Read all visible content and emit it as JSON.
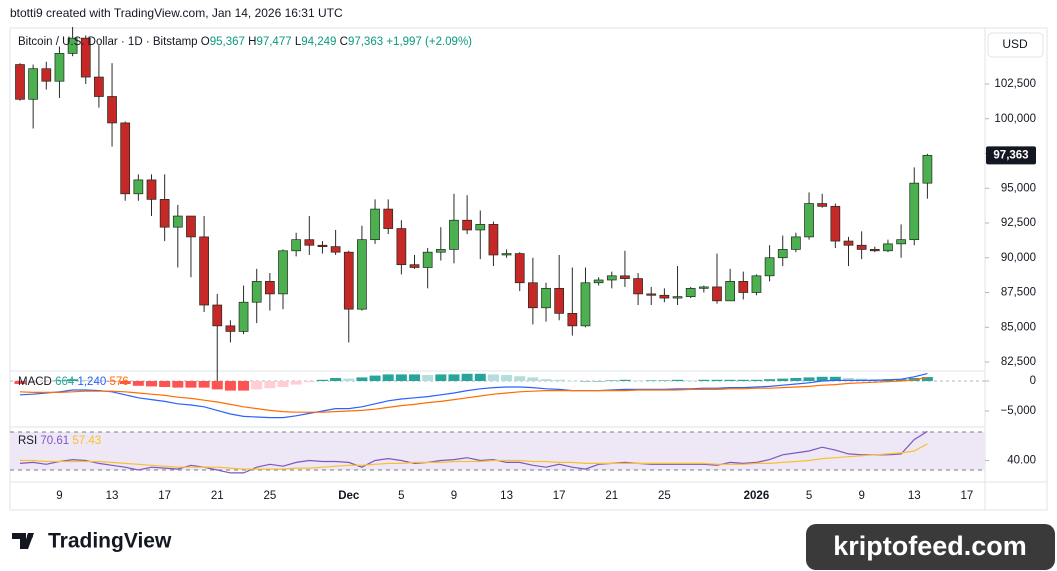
{
  "header": {
    "attribution": "btotti9 created with TradingView.com, Jan 14, 2026 16:31 UTC"
  },
  "footer": {
    "logo": "TradingView",
    "watermark": "kriptofeed.com"
  },
  "chart_data": [
    {
      "type": "candlestick",
      "title": "Bitcoin / U.S. Dollar · 1D · Bitstamp",
      "ohlc_legend": [
        {
          "key": "O",
          "value": "95,367"
        },
        {
          "key": "H",
          "value": "97,477"
        },
        {
          "key": "L",
          "value": "94,249"
        },
        {
          "key": "C",
          "value": "97,363"
        }
      ],
      "change": "+1,997 (+2.09%)",
      "currency": "USD",
      "last_price_label": "97,363",
      "up_color": "#4caf50",
      "down_color": "#c62828",
      "wick_color": "#2a2a2a",
      "x": [
        0,
        1,
        2,
        3,
        4,
        5,
        6,
        7,
        8,
        9,
        10,
        11,
        12,
        13,
        14,
        15,
        16,
        17,
        18,
        19,
        20,
        21,
        22,
        23,
        24,
        25,
        26,
        27,
        28,
        29,
        30,
        31,
        32,
        33,
        34,
        35,
        36,
        37,
        38,
        39,
        40,
        41,
        42,
        43,
        44,
        45,
        46,
        47,
        48,
        49,
        50,
        51,
        52,
        53,
        54,
        55,
        56,
        57,
        58,
        59,
        60,
        61,
        62,
        63,
        64,
        65,
        66,
        67,
        68,
        69
      ],
      "open": [
        103900,
        101400,
        103600,
        102700,
        104700,
        105800,
        103000,
        101600,
        99700,
        94600,
        95600,
        94200,
        92200,
        93000,
        91500,
        86600,
        85100,
        84700,
        86800,
        88300,
        87400,
        90500,
        91300,
        90900,
        90800,
        90400,
        86300,
        91300,
        93500,
        92100,
        89500,
        89300,
        90400,
        90600,
        92700,
        92000,
        92400,
        90200,
        90300,
        88200,
        86400,
        87800,
        86000,
        85100,
        88200,
        88400,
        88700,
        88500,
        87400,
        87300,
        87100,
        87200,
        87800,
        87900,
        86900,
        88300,
        87500,
        88700,
        90000,
        90600,
        91500,
        93900,
        93700,
        91200,
        90900,
        90600,
        90500,
        91000,
        91300,
        95367
      ],
      "high": [
        104000,
        103900,
        104100,
        105200,
        106600,
        106000,
        105300,
        104000,
        99800,
        96000,
        96000,
        96000,
        93800,
        93000,
        93000,
        87400,
        85500,
        88000,
        89200,
        88900,
        90600,
        91800,
        93000,
        91200,
        92000,
        90500,
        92300,
        94200,
        94200,
        92700,
        90200,
        90700,
        92200,
        94600,
        94500,
        93400,
        92600,
        90600,
        90400,
        90000,
        88200,
        90200,
        89300,
        89300,
        88600,
        89000,
        90500,
        88900,
        87900,
        87800,
        89400,
        87900,
        88000,
        90300,
        89200,
        89000,
        88800,
        90900,
        91600,
        91800,
        94700,
        94600,
        93900,
        91500,
        91900,
        90800,
        91300,
        92400,
        96500,
        97477
      ],
      "low": [
        101300,
        99300,
        102100,
        101500,
        104500,
        102500,
        100800,
        98000,
        94100,
        94100,
        93000,
        91200,
        89300,
        88600,
        86100,
        80600,
        83900,
        84500,
        85300,
        86200,
        86300,
        90100,
        90200,
        90300,
        90200,
        83900,
        86200,
        91000,
        91700,
        88800,
        89200,
        87800,
        89800,
        89600,
        91700,
        89900,
        89400,
        90000,
        87600,
        85200,
        85400,
        85500,
        84400,
        85000,
        88000,
        87800,
        87900,
        86600,
        86600,
        86800,
        86600,
        87100,
        87500,
        86700,
        86900,
        87000,
        87300,
        88300,
        89400,
        90400,
        91300,
        93600,
        90700,
        89400,
        89900,
        90400,
        90400,
        90000,
        90900,
        94249
      ],
      "close": [
        101400,
        103600,
        102700,
        104700,
        105800,
        103000,
        101600,
        99700,
        94600,
        95600,
        94200,
        92200,
        93000,
        91500,
        86600,
        85100,
        84700,
        86800,
        88300,
        87400,
        90500,
        91300,
        90900,
        90800,
        90400,
        86300,
        91300,
        93500,
        92100,
        89500,
        89300,
        90400,
        90600,
        92700,
        92000,
        92400,
        90200,
        90300,
        88200,
        86400,
        87800,
        86000,
        85100,
        88200,
        88400,
        88700,
        88500,
        87400,
        87300,
        87100,
        87200,
        87800,
        87900,
        86900,
        88300,
        87500,
        88700,
        90000,
        90600,
        91500,
        93900,
        93700,
        91200,
        90900,
        90600,
        90500,
        91000,
        91300,
        95367,
        97363
      ],
      "xlim": [
        -0.76,
        73.38
      ],
      "xticks": [
        {
          "value": 3,
          "label": "9"
        },
        {
          "value": 7,
          "label": "13"
        },
        {
          "value": 11,
          "label": "17"
        },
        {
          "value": 15,
          "label": "21"
        },
        {
          "value": 19,
          "label": "25"
        },
        {
          "value": 25,
          "label": "Dec"
        },
        {
          "value": 29,
          "label": "5"
        },
        {
          "value": 33,
          "label": "9"
        },
        {
          "value": 37,
          "label": "13"
        },
        {
          "value": 41,
          "label": "17"
        },
        {
          "value": 45,
          "label": "21"
        },
        {
          "value": 49,
          "label": "25"
        },
        {
          "value": 56,
          "label": "2026"
        },
        {
          "value": 60,
          "label": "5"
        },
        {
          "value": 64,
          "label": "9"
        },
        {
          "value": 68,
          "label": "13"
        },
        {
          "value": 72,
          "label": "17"
        }
      ],
      "ylim": [
        81924,
        106529
      ],
      "yticks": [
        {
          "value": 82500,
          "label": "82,500"
        },
        {
          "value": 85000,
          "label": "85,000"
        },
        {
          "value": 87500,
          "label": "87,500"
        },
        {
          "value": 90000,
          "label": "90,000"
        },
        {
          "value": 92500,
          "label": "92,500"
        },
        {
          "value": 95000,
          "label": "95,000"
        },
        {
          "value": 97500,
          "label": "97,500"
        },
        {
          "value": 100000,
          "label": "100,000"
        },
        {
          "value": 102500,
          "label": "102,500"
        }
      ]
    },
    {
      "type": "macd",
      "title": "MACD",
      "legend_values": [
        "664",
        "1,240",
        "576"
      ],
      "hist_colors": {
        "pos_up": "#26a69a",
        "pos_down": "#b2dfdb",
        "neg_up": "#ffcdd2",
        "neg_down": "#ff5252"
      },
      "ylim": [
        -7500,
        1500
      ],
      "yticks": [
        0,
        {
          "value": -5000,
          "label": "−5,000"
        }
      ],
      "histogram": [
        -500,
        -300,
        -100,
        100,
        300,
        200,
        100,
        -100,
        -500,
        -800,
        -900,
        -1000,
        -1100,
        -1100,
        -1100,
        -1400,
        -1600,
        -1600,
        -1400,
        -1200,
        -1000,
        -600,
        -200,
        200,
        500,
        400,
        600,
        900,
        1100,
        1100,
        1100,
        1000,
        1100,
        1100,
        1200,
        1200,
        1100,
        1000,
        800,
        600,
        300,
        200,
        0,
        0,
        0,
        100,
        200,
        100,
        100,
        100,
        200,
        100,
        200,
        200,
        200,
        200,
        200,
        300,
        400,
        500,
        600,
        700,
        700,
        500,
        400,
        300,
        300,
        300,
        500,
        664
      ],
      "series": [
        {
          "name": "MACD",
          "color": "#2962ff",
          "values": [
            -2300,
            -2200,
            -2000,
            -1800,
            -1500,
            -1500,
            -1600,
            -1800,
            -2300,
            -2800,
            -3100,
            -3400,
            -3800,
            -4000,
            -4300,
            -4900,
            -5500,
            -5900,
            -6000,
            -6100,
            -6100,
            -5800,
            -5400,
            -5000,
            -4600,
            -4600,
            -4300,
            -3800,
            -3300,
            -3000,
            -2800,
            -2600,
            -2300,
            -2000,
            -1600,
            -1300,
            -1100,
            -1000,
            -1000,
            -1100,
            -1300,
            -1400,
            -1600,
            -1600,
            -1600,
            -1500,
            -1400,
            -1400,
            -1400,
            -1400,
            -1300,
            -1300,
            -1200,
            -1200,
            -1100,
            -1100,
            -1000,
            -900,
            -700,
            -500,
            -300,
            0,
            100,
            100,
            100,
            100,
            200,
            300,
            700,
            1240
          ]
        },
        {
          "name": "Signal",
          "color": "#ff6d00",
          "values": [
            -1800,
            -1900,
            -1900,
            -1900,
            -1800,
            -1700,
            -1700,
            -1700,
            -1800,
            -2000,
            -2200,
            -2400,
            -2700,
            -2900,
            -3200,
            -3500,
            -3900,
            -4300,
            -4600,
            -4900,
            -5100,
            -5200,
            -5200,
            -5200,
            -5100,
            -5000,
            -4900,
            -4700,
            -4400,
            -4100,
            -3900,
            -3600,
            -3400,
            -3100,
            -2800,
            -2500,
            -2200,
            -2000,
            -1800,
            -1700,
            -1600,
            -1600,
            -1600,
            -1600,
            -1600,
            -1600,
            -1600,
            -1500,
            -1500,
            -1500,
            -1500,
            -1400,
            -1400,
            -1400,
            -1300,
            -1300,
            -1200,
            -1200,
            -1100,
            -1000,
            -900,
            -700,
            -600,
            -400,
            -300,
            -200,
            -100,
            0,
            200,
            576
          ]
        }
      ]
    },
    {
      "type": "rsi",
      "title": "RSI",
      "bands": [
        30,
        70
      ],
      "band_color": "#ede7f6",
      "ylim": [
        17.4,
        74.2
      ],
      "yticks": [
        {
          "value": 40,
          "label": "40.00"
        }
      ],
      "series": [
        {
          "name": "RSI",
          "color": "#7e57c2",
          "values": [
            37,
            38,
            36,
            39,
            41,
            40,
            37,
            35,
            33,
            30,
            33,
            32,
            31,
            35,
            33,
            30,
            27,
            27,
            33,
            36,
            34,
            38,
            40,
            39,
            39,
            38,
            33,
            40,
            42,
            40,
            37,
            38,
            40,
            41,
            43,
            40,
            41,
            38,
            38,
            35,
            33,
            36,
            33,
            31,
            36,
            37,
            38,
            37,
            36,
            36,
            36,
            36,
            36,
            35,
            38,
            37,
            38,
            41,
            46,
            48,
            50,
            54,
            51,
            47,
            46,
            46,
            46,
            47,
            62,
            70.61
          ]
        },
        {
          "name": "RSI-based MA",
          "color": "#fbc02d",
          "values": [
            40,
            40,
            39,
            39,
            39,
            39,
            39,
            38,
            37,
            36,
            35,
            34,
            33,
            33,
            33,
            33,
            32,
            31,
            31,
            31,
            31,
            32,
            32,
            33,
            34,
            35,
            35,
            36,
            37,
            37,
            38,
            38,
            38,
            39,
            39,
            39,
            40,
            40,
            40,
            39,
            39,
            38,
            38,
            37,
            37,
            37,
            37,
            37,
            37,
            37,
            37,
            37,
            37,
            36,
            36,
            36,
            37,
            37,
            38,
            39,
            40,
            42,
            43,
            44,
            45,
            46,
            47,
            48,
            50,
            57.43
          ]
        }
      ]
    }
  ]
}
